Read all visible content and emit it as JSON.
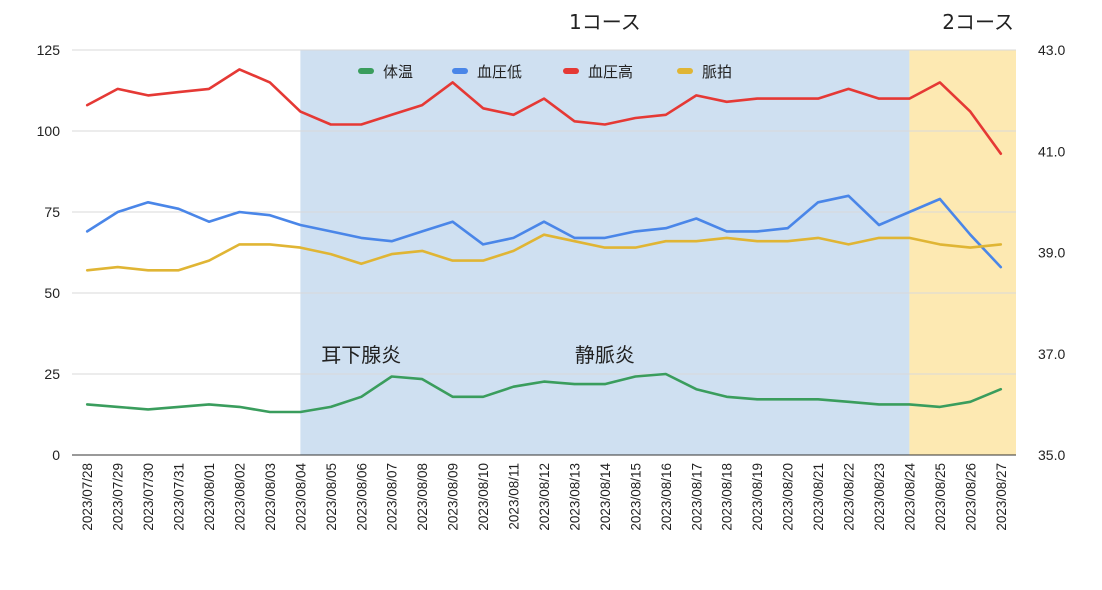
{
  "chart_data": {
    "type": "line",
    "categories": [
      "2023/07/28",
      "2023/07/29",
      "2023/07/30",
      "2023/07/31",
      "2023/08/01",
      "2023/08/02",
      "2023/08/03",
      "2023/08/04",
      "2023/08/05",
      "2023/08/06",
      "2023/08/07",
      "2023/08/08",
      "2023/08/09",
      "2023/08/10",
      "2023/08/11",
      "2023/08/12",
      "2023/08/13",
      "2023/08/14",
      "2023/08/15",
      "2023/08/16",
      "2023/08/17",
      "2023/08/18",
      "2023/08/19",
      "2023/08/20",
      "2023/08/21",
      "2023/08/22",
      "2023/08/23",
      "2023/08/24",
      "2023/08/25",
      "2023/08/26",
      "2023/08/27"
    ],
    "series": [
      {
        "name": "体温",
        "color": "#3a9d5d",
        "axis": "right",
        "values": [
          36.0,
          35.95,
          35.9,
          35.95,
          36.0,
          35.95,
          35.85,
          35.85,
          35.95,
          36.15,
          36.55,
          36.5,
          36.15,
          36.15,
          36.35,
          36.45,
          36.4,
          36.4,
          36.55,
          36.6,
          36.3,
          36.15,
          36.1,
          36.1,
          36.1,
          36.05,
          36.0,
          36.0,
          35.95,
          36.05,
          36.3
        ]
      },
      {
        "name": "血圧低",
        "color": "#4a86e8",
        "axis": "left",
        "values": [
          69,
          75,
          78,
          76,
          72,
          75,
          74,
          71,
          69,
          67,
          66,
          69,
          72,
          65,
          67,
          72,
          67,
          67,
          69,
          70,
          73,
          69,
          69,
          70,
          78,
          80,
          71,
          75,
          79,
          68,
          58
        ]
      },
      {
        "name": "血圧高",
        "color": "#e53935",
        "axis": "left",
        "values": [
          108,
          113,
          111,
          112,
          113,
          119,
          115,
          106,
          102,
          102,
          105,
          108,
          115,
          107,
          105,
          110,
          103,
          102,
          104,
          105,
          111,
          109,
          110,
          110,
          110,
          113,
          110,
          110,
          115,
          106,
          93
        ]
      },
      {
        "name": "脈拍",
        "color": "#e0b534",
        "axis": "left",
        "values": [
          57,
          58,
          57,
          57,
          60,
          65,
          65,
          64,
          62,
          59,
          62,
          63,
          60,
          60,
          63,
          68,
          66,
          64,
          64,
          66,
          66,
          67,
          66,
          66,
          67,
          65,
          67,
          67,
          65,
          64,
          65
        ]
      }
    ],
    "left_axis": {
      "ticks": [
        0,
        25,
        50,
        75,
        100,
        125
      ],
      "range": [
        0,
        125
      ]
    },
    "right_axis": {
      "ticks": [
        "35.0",
        "37.0",
        "39.0",
        "41.0",
        "43.0"
      ],
      "range": [
        35,
        43
      ]
    },
    "grid": true,
    "legend_position": "top-center",
    "bands": [
      {
        "label": "1コース",
        "start": "2023/08/04",
        "end": "2023/08/24",
        "color": "#cfe0f1"
      },
      {
        "label": "2コース",
        "start": "2023/08/24",
        "end": "2023/08/27",
        "color": "#fde9b2"
      }
    ],
    "annotations": [
      {
        "text": "耳下腺炎",
        "at": "2023/08/06"
      },
      {
        "text": "静脈炎",
        "at": "2023/08/14"
      }
    ]
  }
}
